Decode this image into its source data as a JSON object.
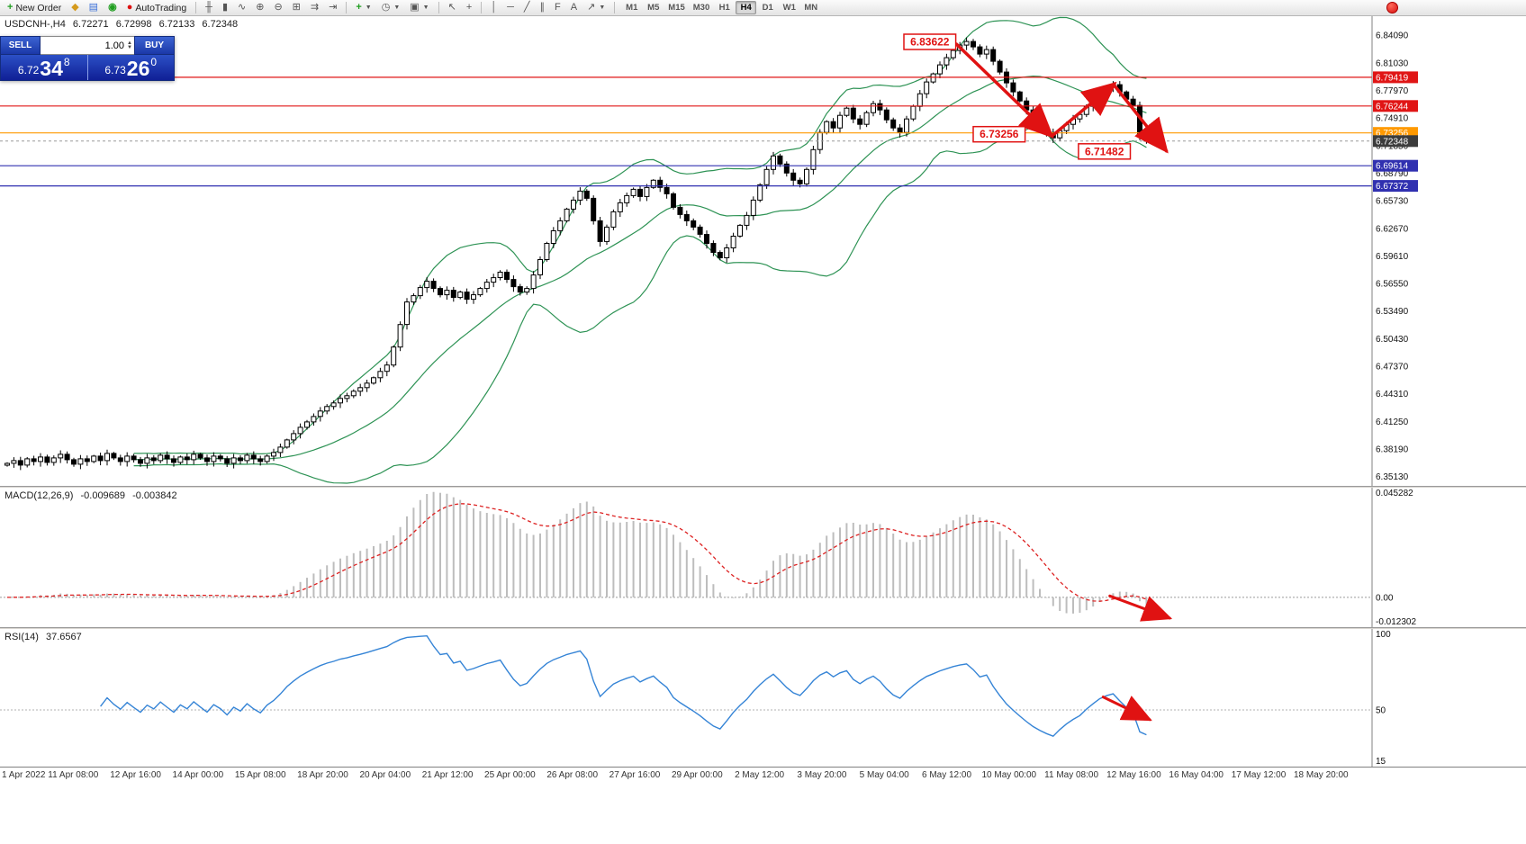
{
  "toolbar": {
    "new_order_label": "New Order",
    "autotrading_label": "AutoTrading",
    "timeframes": [
      "M1",
      "M5",
      "M15",
      "M30",
      "H1",
      "H4",
      "D1",
      "W1",
      "MN"
    ],
    "active_timeframe": "H4"
  },
  "trade_panel": {
    "sell_label": "SELL",
    "buy_label": "BUY",
    "volume": "1.00",
    "sell_big": "6.72",
    "sell_pips": "34",
    "sell_sup": "8",
    "buy_big": "6.73",
    "buy_pips": "26",
    "buy_sup": "0"
  },
  "colors": {
    "annotation": "#e01212",
    "macd_hist": "#bdbdbd",
    "macd_signal": "#dd2222",
    "rsi_line": "#3584d6",
    "bull": "#ffffff",
    "bear": "#000000",
    "grid": "#9a9a9a"
  },
  "chart_data": {
    "type": "candlestick",
    "symbol_title": "USDCNH-,H4",
    "ohlc": {
      "o": "6.72271",
      "h": "6.72998",
      "l": "6.72133",
      "c": "6.72348"
    },
    "y_max": 6.862,
    "y_min": 6.341,
    "first_open": 6.364,
    "closes": [
      6.366,
      6.369,
      6.364,
      6.371,
      6.368,
      6.373,
      6.367,
      6.372,
      6.376,
      6.37,
      6.365,
      6.371,
      6.368,
      6.374,
      6.369,
      6.377,
      6.372,
      6.368,
      6.374,
      6.37,
      6.366,
      6.372,
      6.369,
      6.375,
      6.371,
      6.367,
      6.373,
      6.37,
      6.376,
      6.372,
      6.368,
      6.374,
      6.371,
      6.366,
      6.372,
      6.369,
      6.375,
      6.371,
      6.368,
      6.374,
      6.378,
      6.384,
      6.392,
      6.399,
      6.406,
      6.412,
      6.418,
      6.424,
      6.429,
      6.433,
      6.438,
      6.441,
      6.446,
      6.45,
      6.455,
      6.461,
      6.468,
      6.475,
      6.495,
      6.52,
      6.545,
      6.552,
      6.561,
      6.568,
      6.56,
      6.553,
      6.558,
      6.55,
      6.556,
      6.548,
      6.553,
      6.56,
      6.567,
      6.572,
      6.578,
      6.57,
      6.562,
      6.556,
      6.56,
      6.575,
      6.592,
      6.61,
      6.624,
      6.635,
      6.648,
      6.658,
      6.668,
      6.66,
      6.635,
      6.612,
      6.628,
      6.645,
      6.655,
      6.663,
      6.67,
      6.662,
      6.672,
      6.68,
      6.672,
      6.665,
      6.65,
      6.642,
      6.635,
      6.628,
      6.62,
      6.61,
      6.6,
      6.594,
      6.605,
      6.618,
      6.63,
      6.641,
      6.658,
      6.675,
      6.692,
      6.707,
      6.698,
      6.688,
      6.68,
      6.676,
      6.692,
      6.714,
      6.733,
      6.745,
      6.738,
      6.752,
      6.76,
      6.748,
      6.742,
      6.755,
      6.765,
      6.758,
      6.747,
      6.738,
      6.733,
      6.748,
      6.762,
      6.776,
      6.789,
      6.798,
      6.808,
      6.816,
      6.824,
      6.83,
      6.834,
      6.828,
      6.82,
      6.825,
      6.812,
      6.8,
      6.788,
      6.778,
      6.768,
      6.758,
      6.748,
      6.74,
      6.733,
      6.727,
      6.735,
      6.742,
      6.748,
      6.753,
      6.762,
      6.77,
      6.778,
      6.783,
      6.786,
      6.778,
      6.77,
      6.763,
      6.73,
      6.7235
    ],
    "bollinger": {
      "period": 20,
      "deviation": 2,
      "color": "#2e9355"
    },
    "price_labels": [
      "6.84090",
      "6.81030",
      "6.77970",
      "6.74910",
      "6.71850",
      "6.68790",
      "6.65730",
      "6.62670",
      "6.59610",
      "6.56550",
      "6.53490",
      "6.50430",
      "6.47370",
      "6.44310",
      "6.41250",
      "6.38190",
      "6.35130"
    ],
    "levels": [
      {
        "label": "6.79419",
        "price": 6.79419,
        "color": "#e01515"
      },
      {
        "label": "6.76244",
        "price": 6.76244,
        "color": "#e01515"
      },
      {
        "label": "6.73256",
        "price": 6.73256,
        "color": "#ff9900"
      },
      {
        "label": "6.69614",
        "price": 6.69614,
        "color": "#3030b0"
      },
      {
        "label": "6.67372",
        "price": 6.67372,
        "color": "#3030b0"
      }
    ],
    "current_price": {
      "label": "6.72348",
      "value": 6.72348,
      "color": "#3c3c3c"
    },
    "annotations": {
      "boxes": [
        {
          "label": "6.83622",
          "bar": 134.6,
          "price": 6.842
        },
        {
          "label": "6.73256",
          "bar": 145.0,
          "price": 6.7395
        },
        {
          "label": "6.71482",
          "bar": 160.8,
          "price": 6.7205
        }
      ],
      "arrows": [
        {
          "from_bar": 142.5,
          "from_price": 6.831,
          "to_bar": 156.8,
          "to_price": 6.729
        },
        {
          "from_bar": 156.8,
          "from_price": 6.729,
          "to_bar": 166.2,
          "to_price": 6.787
        },
        {
          "from_bar": 166.2,
          "from_price": 6.785,
          "to_bar": 174.0,
          "to_price": 6.7125
        }
      ]
    },
    "time_labels": [
      "1 Apr 2022",
      "11 Apr 08:00",
      "12 Apr 16:00",
      "14 Apr 00:00",
      "15 Apr 08:00",
      "18 Apr 20:00",
      "20 Apr 04:00",
      "21 Apr 12:00",
      "25 Apr 00:00",
      "26 Apr 08:00",
      "27 Apr 16:00",
      "29 Apr 00:00",
      "2 May 12:00",
      "3 May 20:00",
      "5 May 04:00",
      "6 May 12:00",
      "10 May 00:00",
      "11 May 08:00",
      "12 May 16:00",
      "16 May 04:00",
      "17 May 12:00",
      "18 May 20:00"
    ]
  },
  "macd": {
    "label": "MACD(12,26,9)",
    "value_main": "-0.009689",
    "value_signal": "-0.003842",
    "axis_labels": [
      "0.045282",
      "0.00",
      "-0.012302"
    ],
    "range": {
      "max": 0.045282,
      "min": -0.012302
    },
    "params": {
      "fast": 12,
      "slow": 26,
      "signal": 9
    },
    "arrow": {
      "from_bar": 165.5,
      "from_val": 0.0006,
      "to_bar": 174.5,
      "to_val": -0.0086
    }
  },
  "rsi": {
    "label": "RSI(14)",
    "value": "37.6567",
    "period": 14,
    "axis_labels": [
      "100",
      "50",
      "15"
    ],
    "range": {
      "max": 100,
      "min": 15
    },
    "level": 50,
    "arrow": {
      "from_bar": 164.5,
      "from_val": 58,
      "to_bar": 171.5,
      "to_val": 44
    }
  }
}
